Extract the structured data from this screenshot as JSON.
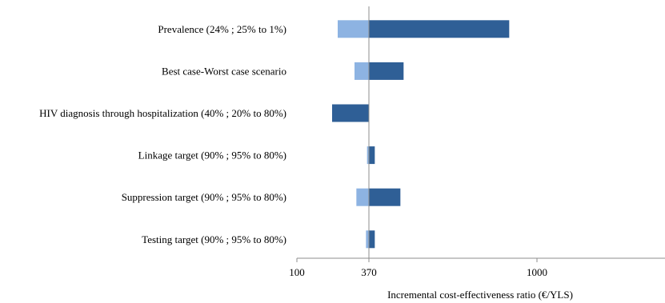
{
  "chart_data": {
    "type": "bar",
    "orientation": "horizontal",
    "subtype": "tornado",
    "title": "",
    "xlabel": "Incremental cost-effectiveness ratio (€/YLS)",
    "ylabel": "",
    "baseline": 370,
    "xlim": [
      100,
      1480
    ],
    "xticks": [
      100,
      370,
      1000
    ],
    "grid": false,
    "legend": "none",
    "colors": {
      "low": "#8db3e2",
      "high": "#2f5f96"
    },
    "categories": [
      "Prevalence (24% ; 25% to 1%)",
      "Best case-Worst case scenario",
      "HIV diagnosis through hospitalization (40% ; 20% to 80%)",
      "Linkage target (90% ; 95% to 80%)",
      "Suppression target (90% ; 95% to 80%)",
      "Testing target (90% ; 95% to 80%)"
    ],
    "series": [
      {
        "key": "low",
        "values": [
          253,
          316,
          370,
          363,
          323,
          359
        ]
      },
      {
        "key": "high",
        "values": [
          896,
          500,
          232,
          392,
          488,
          392
        ]
      }
    ]
  }
}
